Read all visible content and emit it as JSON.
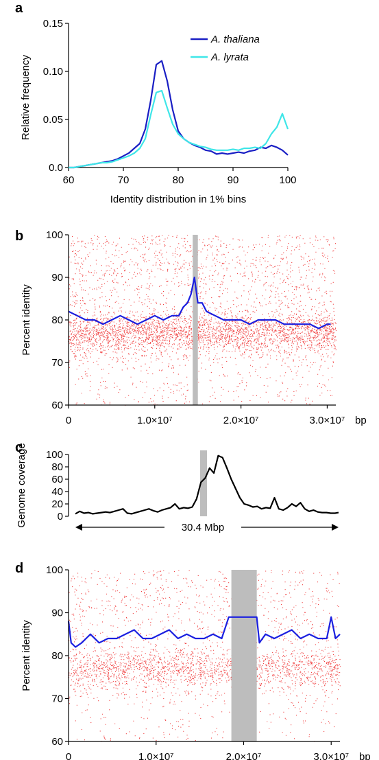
{
  "colors": {
    "thaliana": "#1a1fc4",
    "lyrata": "#3fe6e8",
    "scatter": "#ee2222",
    "identity_line": "#1a1fe0",
    "coverage_line": "#000000",
    "centromere": "#bdbdbd"
  },
  "chart_data": [
    {
      "panel": "a",
      "type": "line",
      "xlabel": "Identity distribution in 1% bins",
      "ylabel": "Relative frequency",
      "xlim": [
        60,
        100
      ],
      "ylim": [
        0,
        0.15
      ],
      "xticks": [
        "60",
        "70",
        "80",
        "90",
        "100"
      ],
      "yticks": [
        "0.0",
        "0.05",
        "0.10",
        "0.15"
      ],
      "legend_position": "top-right",
      "series": [
        {
          "name": "A. thaliana",
          "x": [
            60,
            61,
            62,
            63,
            64,
            65,
            66,
            67,
            68,
            69,
            70,
            71,
            72,
            73,
            74,
            75,
            76,
            77,
            78,
            79,
            80,
            81,
            82,
            83,
            84,
            85,
            86,
            87,
            88,
            89,
            90,
            91,
            92,
            93,
            94,
            95,
            96,
            97,
            98,
            99,
            100
          ],
          "y": [
            0.0,
            0.0,
            0.001,
            0.002,
            0.003,
            0.004,
            0.005,
            0.006,
            0.007,
            0.009,
            0.012,
            0.015,
            0.02,
            0.025,
            0.04,
            0.07,
            0.107,
            0.111,
            0.09,
            0.06,
            0.038,
            0.03,
            0.026,
            0.023,
            0.021,
            0.018,
            0.017,
            0.014,
            0.015,
            0.014,
            0.015,
            0.016,
            0.015,
            0.017,
            0.018,
            0.021,
            0.02,
            0.023,
            0.021,
            0.018,
            0.013
          ]
        },
        {
          "name": "A. lyrata",
          "x": [
            60,
            61,
            62,
            63,
            64,
            65,
            66,
            67,
            68,
            69,
            70,
            71,
            72,
            73,
            74,
            75,
            76,
            77,
            78,
            79,
            80,
            81,
            82,
            83,
            84,
            85,
            86,
            87,
            88,
            89,
            90,
            91,
            92,
            93,
            94,
            95,
            96,
            97,
            98,
            99,
            100
          ],
          "y": [
            0.0,
            0.0,
            0.001,
            0.002,
            0.003,
            0.004,
            0.005,
            0.005,
            0.006,
            0.008,
            0.01,
            0.012,
            0.015,
            0.02,
            0.03,
            0.055,
            0.078,
            0.08,
            0.062,
            0.045,
            0.035,
            0.03,
            0.026,
            0.024,
            0.022,
            0.021,
            0.019,
            0.018,
            0.018,
            0.018,
            0.019,
            0.018,
            0.02,
            0.02,
            0.021,
            0.02,
            0.025,
            0.035,
            0.042,
            0.056,
            0.04
          ]
        }
      ]
    },
    {
      "panel": "b",
      "type": "scatter",
      "ylabel": "Percent identity",
      "xlim": [
        0,
        31000000
      ],
      "ylim": [
        60,
        100
      ],
      "xticks": [
        "0",
        "1.0×10⁷",
        "2.0×10⁷",
        "3.0×10⁷"
      ],
      "x_unit": "bp",
      "yticks": [
        "60",
        "70",
        "80",
        "90",
        "100"
      ],
      "centromere": [
        14400000,
        15000000
      ],
      "identity_line": {
        "x": [
          0,
          1000000,
          2000000,
          3000000,
          4000000,
          5000000,
          6000000,
          7000000,
          8000000,
          9000000,
          10000000,
          11000000,
          12000000,
          12800000,
          13300000,
          13800000,
          14200000,
          14600000,
          15000000,
          15500000,
          16000000,
          17000000,
          18000000,
          19000000,
          20000000,
          21000000,
          22000000,
          23000000,
          24000000,
          25000000,
          26000000,
          27000000,
          28000000,
          29000000,
          30000000,
          30400000
        ],
        "y": [
          82,
          81,
          80,
          80,
          79,
          80,
          81,
          80,
          79,
          80,
          81,
          80,
          81,
          81,
          83,
          84,
          86,
          90,
          84,
          84,
          82,
          81,
          80,
          80,
          80,
          79,
          80,
          80,
          80,
          79,
          79,
          79,
          79,
          78,
          79,
          79
        ]
      }
    },
    {
      "panel": "c",
      "type": "line",
      "ylabel": "Genome coverage",
      "xlim": [
        0,
        30400000
      ],
      "ylim": [
        0,
        100
      ],
      "yticks": [
        "0",
        "20",
        "40",
        "60",
        "80",
        "100"
      ],
      "span_label": "30.4 Mbp",
      "centromere": [
        14400000,
        15200000
      ],
      "series": [
        {
          "x": [
            0,
            500000,
            1000000,
            1500000,
            2000000,
            2500000,
            3000000,
            3500000,
            4000000,
            4500000,
            5000000,
            5500000,
            6000000,
            6500000,
            7000000,
            7500000,
            8000000,
            8500000,
            9000000,
            9500000,
            10000000,
            10500000,
            11000000,
            11500000,
            12000000,
            12500000,
            13000000,
            13500000,
            14000000,
            14500000,
            15000000,
            15500000,
            16000000,
            16500000,
            17000000,
            17500000,
            18000000,
            18500000,
            19000000,
            19500000,
            20000000,
            20500000,
            21000000,
            21500000,
            22000000,
            22500000,
            23000000,
            23500000,
            24000000,
            24500000,
            25000000,
            25500000,
            26000000,
            26500000,
            27000000,
            27500000,
            28000000,
            28500000,
            29000000,
            29500000,
            30000000,
            30400000
          ],
          "y": [
            4,
            8,
            5,
            6,
            4,
            5,
            6,
            7,
            6,
            8,
            10,
            12,
            5,
            4,
            6,
            8,
            10,
            12,
            9,
            7,
            10,
            12,
            14,
            20,
            12,
            14,
            13,
            15,
            28,
            55,
            62,
            78,
            70,
            98,
            95,
            78,
            60,
            45,
            30,
            20,
            18,
            15,
            16,
            12,
            14,
            13,
            30,
            12,
            10,
            14,
            20,
            16,
            22,
            12,
            8,
            10,
            7,
            6,
            6,
            5,
            5,
            6
          ]
        }
      ]
    },
    {
      "panel": "d",
      "type": "scatter",
      "ylabel": "Percent identity",
      "xlim": [
        0,
        31000000
      ],
      "ylim": [
        60,
        100
      ],
      "xticks": [
        "0",
        "1.0×10⁷",
        "2.0×10⁷",
        "3.0×10⁷"
      ],
      "x_unit": "bp",
      "yticks": [
        "60",
        "70",
        "80",
        "90",
        "100"
      ],
      "centromere": [
        18600000,
        21500000
      ],
      "identity_line": {
        "x": [
          0,
          300000,
          800000,
          1500000,
          2500000,
          3500000,
          4500000,
          5500000,
          6500000,
          7500000,
          8500000,
          9500000,
          10500000,
          11500000,
          12500000,
          13500000,
          14500000,
          15500000,
          16500000,
          17500000,
          18300000,
          18600000,
          21500000,
          21800000,
          22500000,
          23500000,
          24500000,
          25500000,
          26500000,
          27500000,
          28500000,
          29500000,
          30000000,
          30500000,
          31000000
        ],
        "y": [
          88,
          83,
          82,
          83,
          85,
          83,
          84,
          84,
          85,
          86,
          84,
          84,
          85,
          86,
          84,
          85,
          84,
          84,
          85,
          84,
          89,
          89,
          89,
          83,
          85,
          84,
          85,
          86,
          84,
          85,
          84,
          84,
          89,
          84,
          85
        ]
      }
    }
  ]
}
